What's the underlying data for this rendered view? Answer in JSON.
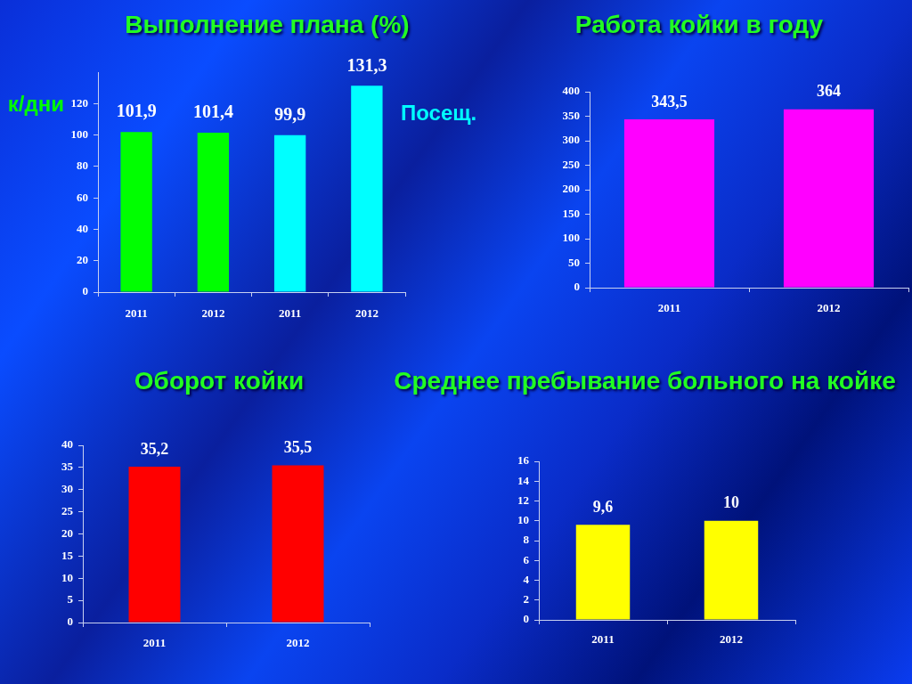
{
  "chart_data": [
    {
      "type": "bar",
      "title": "Выполнение плана (%)",
      "categories": [
        "2011",
        "2012",
        "2011",
        "2012"
      ],
      "series": [
        {
          "name": "к/дни",
          "color": "#00ff00",
          "values": [
            101.9,
            101.4,
            null,
            null
          ],
          "value_labels": [
            "101,9",
            "101,4",
            null,
            null
          ]
        },
        {
          "name": "Посещ.",
          "color": "#00ffff",
          "values": [
            null,
            null,
            99.9,
            131.3
          ],
          "value_labels": [
            null,
            null,
            "99,9",
            "131,3"
          ]
        }
      ],
      "ylim": [
        0,
        140
      ],
      "yticks": [
        0,
        20,
        40,
        60,
        80,
        100,
        120
      ],
      "grid": false,
      "legend": false
    },
    {
      "type": "bar",
      "title": "Работа койки в году",
      "categories": [
        "2011",
        "2012"
      ],
      "values": [
        343.5,
        364
      ],
      "color": "#ff00ff",
      "value_labels": [
        "343,5",
        "364"
      ],
      "ylim": [
        0,
        400
      ],
      "yticks": [
        0,
        50,
        100,
        150,
        200,
        250,
        300,
        350,
        400
      ],
      "grid": false,
      "legend": false
    },
    {
      "type": "bar",
      "title": "Оборот койки",
      "categories": [
        "2011",
        "2012"
      ],
      "values": [
        35.2,
        35.5
      ],
      "color": "#ff0000",
      "value_labels": [
        "35,2",
        "35,5"
      ],
      "ylim": [
        0,
        40
      ],
      "yticks": [
        0,
        5,
        10,
        15,
        20,
        25,
        30,
        35,
        40
      ],
      "grid": false,
      "legend": false
    },
    {
      "type": "bar",
      "title": "Среднее пребывание больного на койке",
      "categories": [
        "2011",
        "2012"
      ],
      "values": [
        9.6,
        10
      ],
      "color": "#ffff00",
      "value_labels": [
        "9,6",
        "10"
      ],
      "ylim": [
        0,
        16
      ],
      "yticks": [
        0,
        2,
        4,
        6,
        8,
        10,
        12,
        14,
        16
      ],
      "grid": false,
      "legend": false
    }
  ]
}
